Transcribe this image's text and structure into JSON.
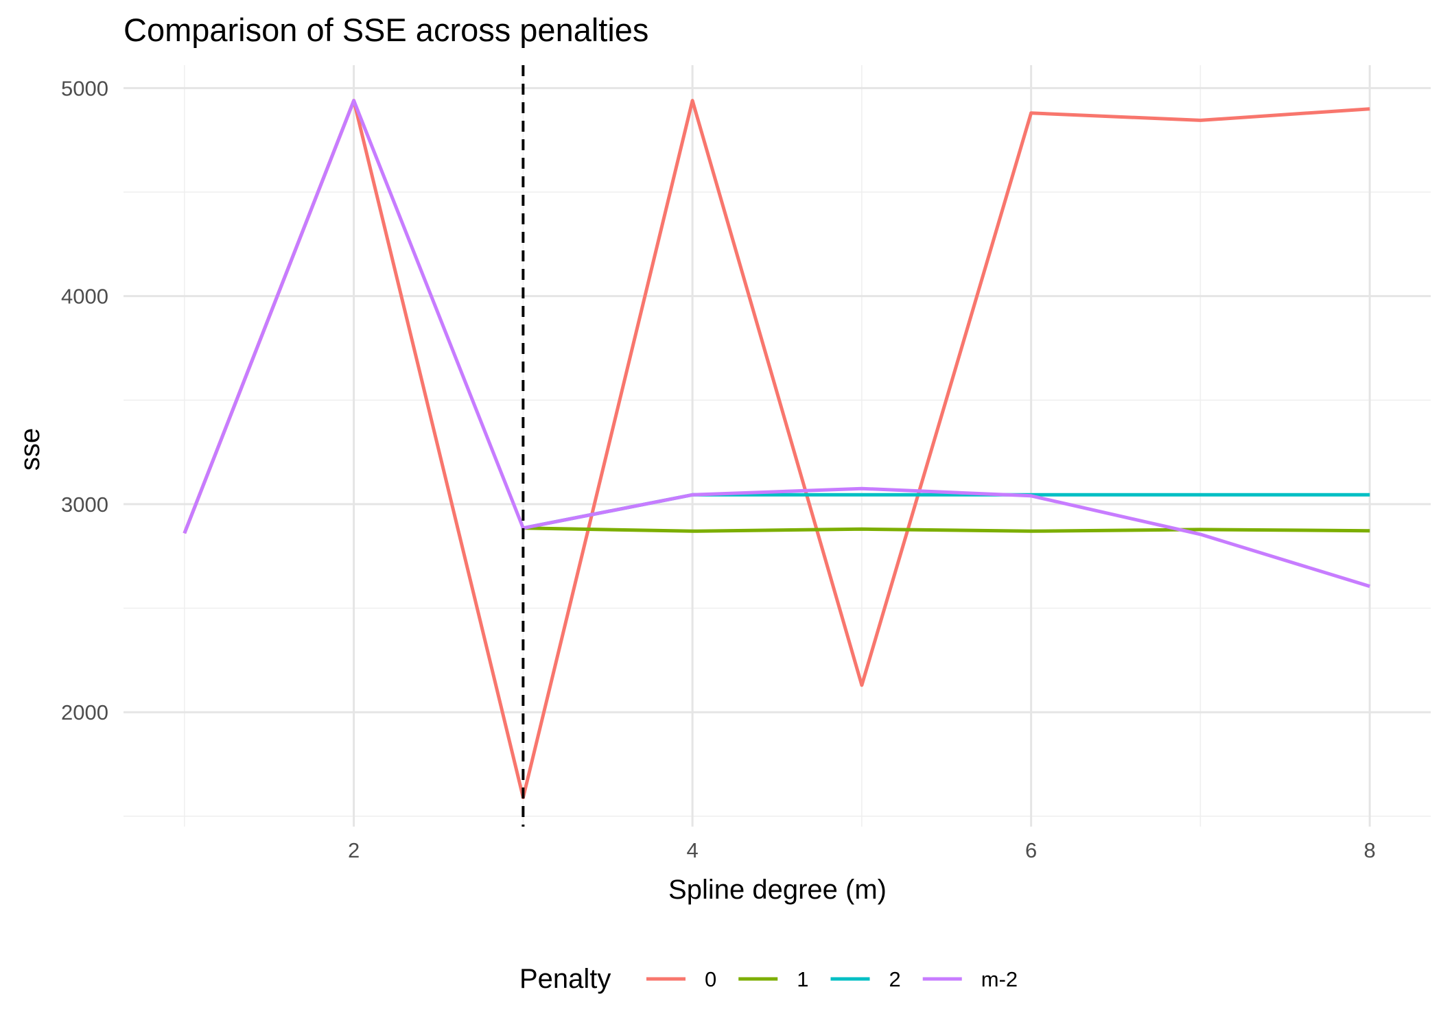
{
  "chart_data": {
    "type": "line",
    "title": "Comparison of SSE across penalties",
    "xlabel": "Spline degree (m)",
    "ylabel": "sse",
    "x": [
      1,
      2,
      3,
      4,
      5,
      6,
      7,
      8
    ],
    "xlim": [
      0.64,
      8.36
    ],
    "ylim": [
      1450,
      5110
    ],
    "x_ticks": [
      2,
      4,
      6,
      8
    ],
    "y_ticks": [
      2000,
      3000,
      4000,
      5000
    ],
    "grid": true,
    "vline": {
      "x": 3,
      "style": "dashed",
      "color": "#000000"
    },
    "legend": {
      "title": "Penalty",
      "position": "bottom"
    },
    "series": [
      {
        "name": "0",
        "color": "#F8766D",
        "x": [
          1,
          2,
          3,
          4,
          5,
          6,
          7,
          8
        ],
        "values": [
          2860,
          4940,
          1590,
          4940,
          2130,
          4880,
          4845,
          4900
        ]
      },
      {
        "name": "1",
        "color": "#7CAE00",
        "x": [
          3,
          4,
          5,
          6,
          7,
          8
        ],
        "values": [
          2885,
          2870,
          2880,
          2870,
          2878,
          2872
        ]
      },
      {
        "name": "2",
        "color": "#00BFC4",
        "x": [
          3,
          4,
          5,
          6,
          7,
          8
        ],
        "values": [
          2885,
          3045,
          3045,
          3045,
          3045,
          3045
        ]
      },
      {
        "name": "m-2",
        "color": "#C77CFF",
        "x": [
          1,
          2,
          3,
          4,
          5,
          6,
          7,
          8
        ],
        "values": [
          2860,
          4940,
          2885,
          3045,
          3075,
          3040,
          2855,
          2605
        ]
      }
    ]
  }
}
